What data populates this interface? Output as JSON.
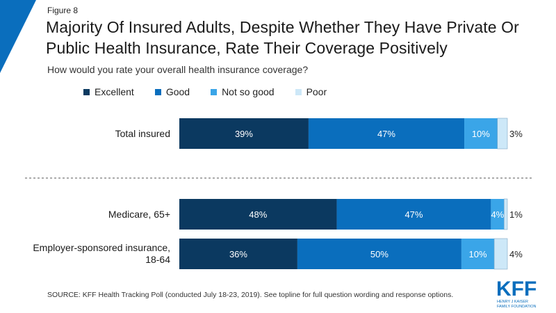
{
  "figure_label": "Figure 8",
  "title": "Majority Of Insured Adults, Despite Whether They Have Private Or Public Health Insurance, Rate Their Coverage Positively",
  "subtitle": "How would you rate your overall health insurance coverage?",
  "source": "SOURCE: KFF Health Tracking Poll (conducted July 18-23, 2019). See topline for full question wording and response options.",
  "logo": {
    "mark": "KFF",
    "line1": "HENRY J KAISER",
    "line2": "FAMILY FOUNDATION"
  },
  "colors": {
    "accent": "#0a6ebd",
    "excellent": "#0b3960",
    "good": "#0a6ebd",
    "not_so_good": "#3aa5e8",
    "poor": "#cde8f8"
  },
  "chart_data": {
    "type": "bar",
    "orientation": "horizontal",
    "stacked": true,
    "categories": [
      "Total insured",
      "Medicare, 65+",
      "Employer-sponsored insurance, 18-64"
    ],
    "series": [
      {
        "name": "Excellent",
        "values": [
          39,
          48,
          36
        ],
        "color": "#0b3960"
      },
      {
        "name": "Good",
        "values": [
          47,
          47,
          50
        ],
        "color": "#0a6ebd"
      },
      {
        "name": "Not so good",
        "values": [
          10,
          4,
          10
        ],
        "color": "#3aa5e8"
      },
      {
        "name": "Poor",
        "values": [
          3,
          1,
          4
        ],
        "color": "#cde8f8"
      }
    ],
    "value_suffix": "%",
    "legend_position": "top",
    "grid": false,
    "separator_after_category": 0
  }
}
